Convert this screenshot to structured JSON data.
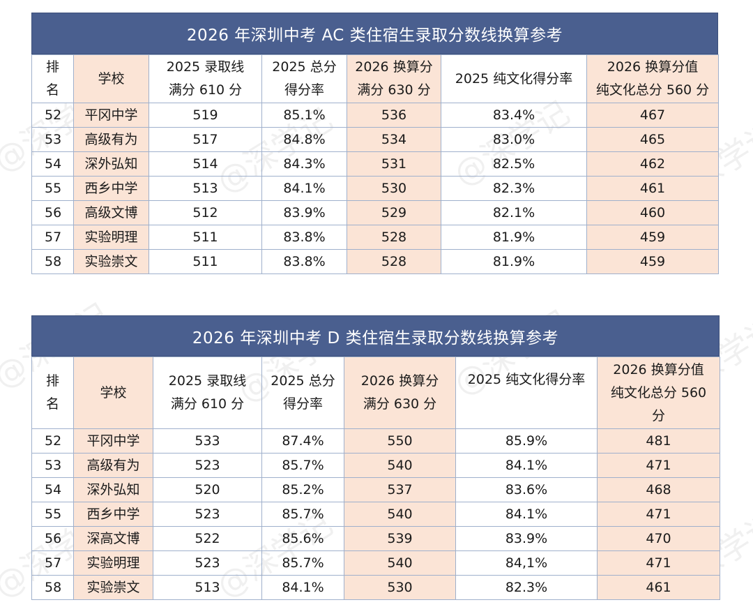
{
  "watermark": "@深学记",
  "tables": [
    {
      "title": "2026 年深圳中考 AC 类住宿生录取分数线换算参考",
      "headers": [
        "排\n名",
        "学校",
        "2025 录取线\n满分 610 分",
        "2025 总分\n得分率",
        "2026 换算分\n满分 630 分",
        "2025 纯文化得分率",
        "2026 换算分值\n纯文化总分 560 分"
      ],
      "rows": [
        [
          "52",
          "平冈中学",
          "519",
          "85.1%",
          "536",
          "83.4%",
          "467"
        ],
        [
          "53",
          "高级有为",
          "517",
          "84.8%",
          "534",
          "83.0%",
          "465"
        ],
        [
          "54",
          "深外弘知",
          "514",
          "84.3%",
          "531",
          "82.5%",
          "462"
        ],
        [
          "55",
          "西乡中学",
          "513",
          "84.1%",
          "530",
          "82.3%",
          "461"
        ],
        [
          "56",
          "高级文博",
          "512",
          "83.9%",
          "529",
          "82.1%",
          "460"
        ],
        [
          "57",
          "实验明理",
          "511",
          "83.8%",
          "528",
          "81.9%",
          "459"
        ],
        [
          "58",
          "实验崇文",
          "511",
          "83.8%",
          "528",
          "81.9%",
          "459"
        ]
      ]
    },
    {
      "title": "2026 年深圳中考 D 类住宿生录取分数线换算参考",
      "headers": [
        "排\n名",
        "学校",
        "2025 录取线\n满分 610 分",
        "2025 总分\n得分率",
        "2026 换算分\n满分 630 分",
        "2025 纯文化得分率",
        "2026 换算分值\n纯文化总分 560\n分"
      ],
      "rows": [
        [
          "52",
          "平冈中学",
          "533",
          "87.4%",
          "550",
          "85.9%",
          "481"
        ],
        [
          "53",
          "高级有为",
          "523",
          "85.7%",
          "540",
          "84.1%",
          "471"
        ],
        [
          "54",
          "深外弘知",
          "520",
          "85.2%",
          "537",
          "83.6%",
          "468"
        ],
        [
          "55",
          "西乡中学",
          "523",
          "85.7%",
          "540",
          "84.1%",
          "471"
        ],
        [
          "56",
          "深高文博",
          "522",
          "85.6%",
          "539",
          "83.9%",
          "470"
        ],
        [
          "57",
          "实验明理",
          "523",
          "85.7%",
          "540",
          "84,1%",
          "471"
        ],
        [
          "58",
          "实验崇文",
          "513",
          "84.1%",
          "530",
          "82.3%",
          "461"
        ]
      ]
    }
  ]
}
